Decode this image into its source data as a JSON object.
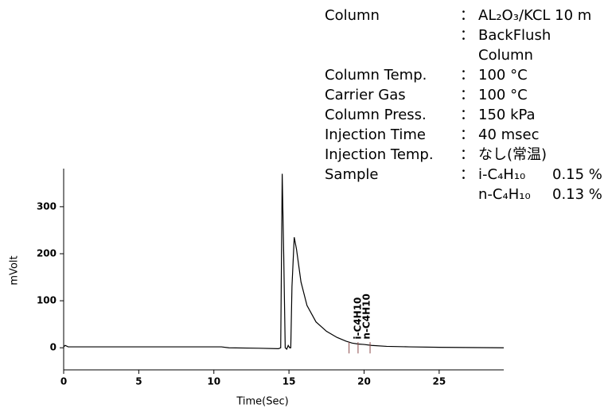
{
  "chart_data": {
    "type": "line",
    "xlabel": "Time(Sec)",
    "ylabel": "mVolt",
    "xlim": [
      0,
      29.3
    ],
    "ylim": [
      -47,
      381
    ],
    "xticks": [
      0,
      5,
      10,
      15,
      20,
      25
    ],
    "yticks": [
      0,
      100,
      200,
      300
    ],
    "series": [
      {
        "color": "#000000",
        "x": [
          0,
          0.1,
          0.3,
          5,
          10.5,
          11,
          13,
          14.3,
          14.45,
          14.55,
          14.65,
          14.75,
          14.85,
          14.95,
          15.05,
          15.12,
          15.2,
          15.35,
          15.5,
          15.8,
          16.2,
          16.8,
          17.5,
          18.2,
          18.8,
          19.2,
          19.6,
          20.0,
          20.5,
          21.5,
          23,
          25,
          29.3
        ],
        "values": [
          2,
          5,
          2,
          2,
          2,
          0,
          -1,
          -2,
          0,
          370,
          200,
          0,
          -3,
          5,
          0,
          0,
          130,
          235,
          210,
          140,
          90,
          55,
          35,
          22,
          14,
          10,
          8,
          7,
          5,
          3,
          2,
          1,
          0
        ]
      }
    ],
    "peaks": [
      {
        "label": "i-C4H10",
        "x": 19.6
      },
      {
        "label": "n-C4H10",
        "x": 20.2
      }
    ],
    "peak_boundaries": [
      19.0,
      19.6,
      20.4
    ]
  },
  "conditions": {
    "separator": "：",
    "rows": [
      {
        "label": "Column",
        "values": [
          "AL₂O₃/KCL 10 m"
        ]
      },
      {
        "values": [
          "BackFlush",
          "Column"
        ]
      },
      {
        "label": "Column Temp.",
        "values": [
          "100 °C"
        ]
      },
      {
        "label": "Carrier Gas",
        "values": [
          "100 °C"
        ]
      },
      {
        "label": "Column Press.",
        "values": [
          "150 kPa"
        ]
      },
      {
        "label": "Injection Time",
        "values": [
          "40 msec"
        ]
      },
      {
        "label": "Injection Temp.",
        "values": [
          "なし(常温)"
        ]
      },
      {
        "label": "Sample",
        "values": [
          "i-C₄H₁₀",
          "n-C₄H₁₀"
        ],
        "amounts": [
          "0.15 %",
          "0.13 %"
        ]
      }
    ]
  }
}
